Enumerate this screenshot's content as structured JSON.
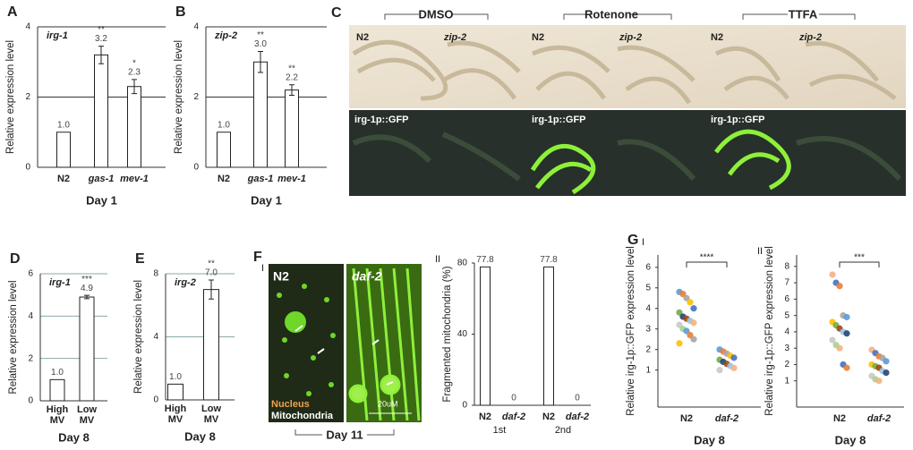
{
  "chart_data": [
    {
      "type": "bar",
      "panel": "A",
      "series_label": "irg-1",
      "ylabel": "Relative expression level",
      "xlabel": "Day 1",
      "categories": [
        "N2",
        "gas-1",
        "mev-1"
      ],
      "italic": [
        false,
        true,
        true
      ],
      "values": [
        1.0,
        3.2,
        2.3
      ],
      "value_labels": [
        "1.0",
        "3.2",
        "2.3"
      ],
      "errors": [
        null,
        0.25,
        0.2
      ],
      "significance": [
        null,
        "**",
        "*"
      ],
      "ylim": [
        0,
        4
      ],
      "yticks": [
        0,
        2,
        4
      ],
      "grid": true,
      "color": "#ffffff"
    },
    {
      "type": "bar",
      "panel": "B",
      "series_label": "zip-2",
      "ylabel": "Relative expression level",
      "xlabel": "Day 1",
      "categories": [
        "N2",
        "gas-1",
        "mev-1"
      ],
      "italic": [
        false,
        true,
        true
      ],
      "values": [
        1.0,
        3.0,
        2.2
      ],
      "value_labels": [
        "1.0",
        "3.0",
        "2.2"
      ],
      "errors": [
        null,
        0.3,
        0.15
      ],
      "significance": [
        null,
        "**",
        "**"
      ],
      "ylim": [
        0,
        4
      ],
      "yticks": [
        0,
        2,
        4
      ],
      "grid": true,
      "color": "#ffffff"
    },
    {
      "type": "bar",
      "panel": "D",
      "series_label": "irg-1",
      "ylabel": "Relative expression level",
      "xlabel": "Day 8",
      "categories": [
        "High MV",
        "Low MV"
      ],
      "italic": [
        false,
        false
      ],
      "values": [
        1.0,
        4.9
      ],
      "value_labels": [
        "1.0",
        "4.9"
      ],
      "errors": [
        null,
        0.08
      ],
      "significance": [
        null,
        "***"
      ],
      "ylim": [
        0,
        6
      ],
      "yticks": [
        0,
        2,
        4,
        6
      ],
      "grid": true,
      "color": "#ffffff"
    },
    {
      "type": "bar",
      "panel": "E",
      "series_label": "irg-2",
      "ylabel": "Relative expression level",
      "xlabel": "Day 8",
      "categories": [
        "High MV",
        "Low MV"
      ],
      "italic": [
        false,
        false
      ],
      "values": [
        1.0,
        7.0
      ],
      "value_labels": [
        "1.0",
        "7.0"
      ],
      "errors": [
        null,
        0.6
      ],
      "significance": [
        null,
        "**"
      ],
      "ylim": [
        0,
        8
      ],
      "yticks": [
        0,
        4,
        8
      ],
      "grid": true,
      "color": "#ffffff"
    },
    {
      "type": "bar",
      "subpanel": "II",
      "ylabel": "Fragmented mitochondria (%)",
      "categories": [
        "N2",
        "daf-2",
        "N2",
        "daf-2"
      ],
      "italic": [
        false,
        true,
        false,
        true
      ],
      "groups": [
        "1st",
        "2nd"
      ],
      "values": [
        77.8,
        0,
        77.8,
        0
      ],
      "ylim": [
        0,
        80
      ],
      "yticks": [
        0,
        40,
        80
      ],
      "grid": false,
      "color": "#ffffff"
    },
    {
      "type": "dot",
      "panel": "G",
      "subpanel": "I",
      "ylabel": "Relative irg-1p::GFP expression level",
      "xlabel": "Day 8",
      "categories": [
        "N2",
        "daf-2"
      ],
      "italic": [
        false,
        true
      ],
      "points": [
        [
          4.8,
          4.7,
          4.5,
          4.3,
          4.0,
          3.8,
          3.6,
          3.5,
          3.4,
          3.3,
          3.2,
          3.0,
          2.9,
          2.7,
          2.5,
          2.3
        ],
        [
          2.0,
          1.9,
          1.8,
          1.7,
          1.6,
          1.5,
          1.4,
          1.3,
          1.2,
          1.1,
          1.0
        ]
      ],
      "significance": "****",
      "ylim": [
        -0.8,
        6.6
      ],
      "yticks": [
        1,
        2,
        3,
        4,
        5,
        6
      ],
      "point_colors": [
        "#5b9bd5",
        "#ed7d31",
        "#a5a5a5",
        "#ffc000",
        "#4472c4",
        "#70ad47",
        "#264478",
        "#9e480e",
        "#9dc3e6",
        "#f4b183",
        "#c9c9c9",
        "#a9d18e"
      ]
    },
    {
      "type": "dot",
      "subpanel": "II",
      "ylabel": "Relative irg-1p::GFP expression level",
      "xlabel": "Day 8",
      "categories": [
        "N2",
        "daf-2"
      ],
      "italic": [
        false,
        true
      ],
      "points": [
        [
          7.5,
          7.0,
          6.8,
          5.0,
          4.9,
          4.6,
          4.4,
          4.2,
          4.0,
          3.9,
          3.5,
          3.2,
          3.0,
          2.0,
          1.8
        ],
        [
          2.9,
          2.7,
          2.5,
          2.4,
          2.2,
          2.0,
          1.9,
          1.8,
          1.6,
          1.5,
          1.3,
          1.1,
          1.0
        ]
      ],
      "significance": "***",
      "ylim": [
        -0.6,
        8.7
      ],
      "yticks": [
        1,
        2,
        3,
        4,
        5,
        6,
        7,
        8
      ],
      "point_colors": [
        "#f4b183",
        "#4472c4",
        "#ed7d31",
        "#a5a5a5",
        "#5b9bd5",
        "#ffc000",
        "#70ad47",
        "#9e480e",
        "#9dc3e6",
        "#264478",
        "#c9c9c9",
        "#a9d18e"
      ]
    }
  ],
  "panel_c": {
    "letter": "C",
    "treatments": [
      "DMSO",
      "Rotenone",
      "TTFA"
    ],
    "strains": [
      "N2",
      "zip-2"
    ],
    "reporter": "irg-1p::GFP"
  },
  "panel_f": {
    "letter": "F",
    "subpanel": "I",
    "strains": [
      "N2",
      "daf-2"
    ],
    "nucleus": "Nucleus",
    "mitochondria": "Mitochondria",
    "scale": "20uM",
    "day": "Day 11"
  }
}
